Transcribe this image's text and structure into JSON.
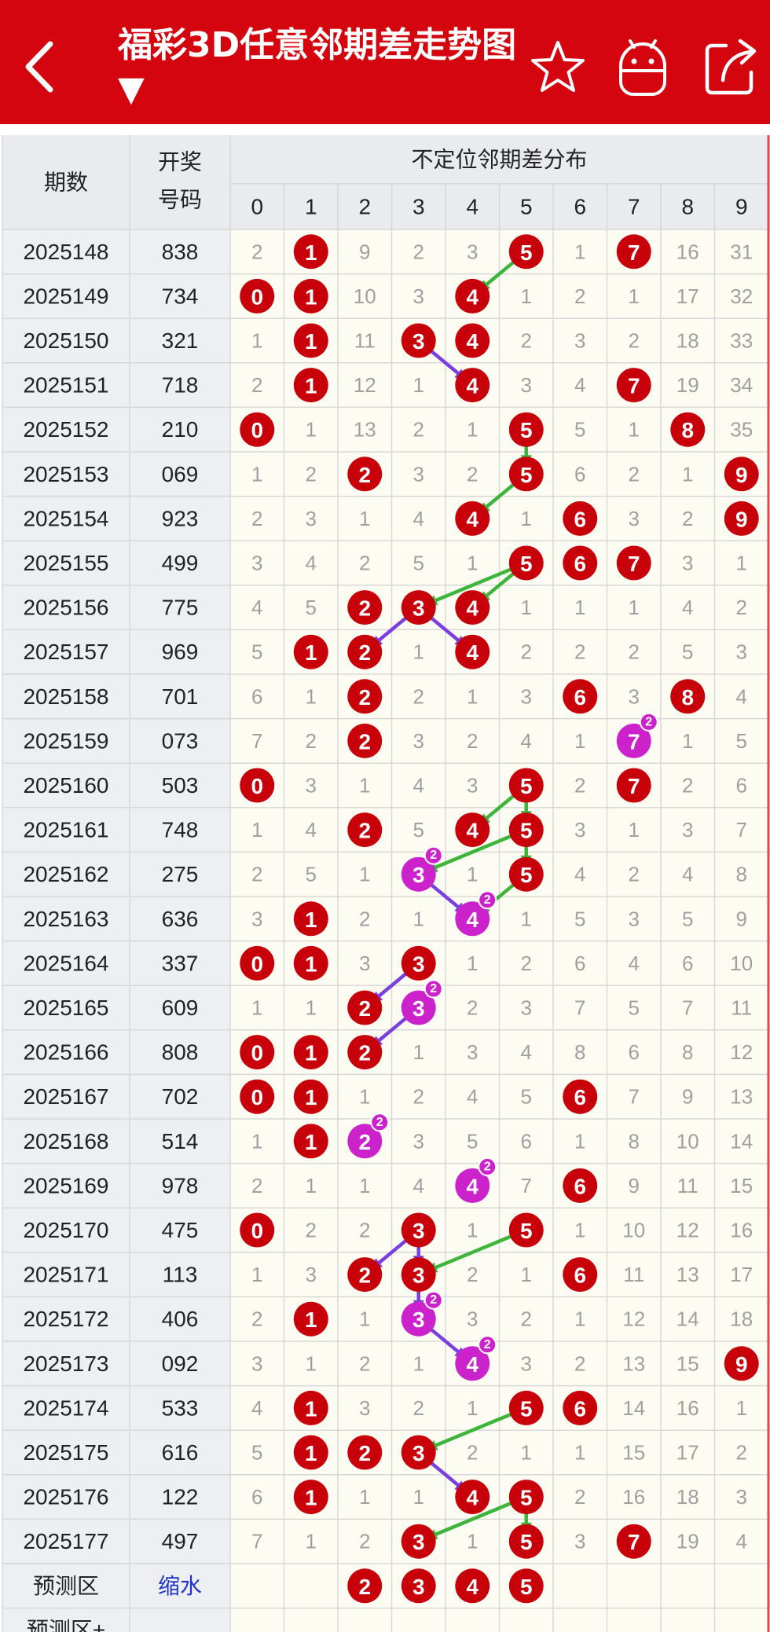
{
  "header": {
    "title": "福彩3D任意邻期差走势图 ▼",
    "icons": [
      "back-arrow-icon",
      "star-icon",
      "android-robot-icon",
      "share-icon"
    ],
    "bg_color": "#d4050e"
  },
  "table": {
    "col_issue": "期数",
    "col_draw": "开奖号码",
    "group_title": "不定位邻期差分布",
    "digits": [
      "0",
      "1",
      "2",
      "3",
      "4",
      "5",
      "6",
      "7",
      "8",
      "9"
    ],
    "rows": [
      {
        "issue": "2025148",
        "draw": "838",
        "cells": [
          "2",
          "1",
          "9",
          "2",
          "3",
          "5",
          "1",
          "7",
          "16",
          "31"
        ],
        "red": [
          1,
          5,
          7
        ],
        "purple": []
      },
      {
        "issue": "2025149",
        "draw": "734",
        "cells": [
          "0",
          "1",
          "10",
          "3",
          "4",
          "1",
          "2",
          "1",
          "17",
          "32"
        ],
        "red": [
          0,
          1,
          4
        ],
        "purple": []
      },
      {
        "issue": "2025150",
        "draw": "321",
        "cells": [
          "1",
          "1",
          "11",
          "3",
          "4",
          "2",
          "3",
          "2",
          "18",
          "33"
        ],
        "red": [
          1,
          3,
          4
        ],
        "purple": []
      },
      {
        "issue": "2025151",
        "draw": "718",
        "cells": [
          "2",
          "1",
          "12",
          "1",
          "4",
          "3",
          "4",
          "7",
          "19",
          "34"
        ],
        "red": [
          1,
          4,
          7
        ],
        "purple": []
      },
      {
        "issue": "2025152",
        "draw": "210",
        "cells": [
          "0",
          "1",
          "13",
          "2",
          "1",
          "5",
          "5",
          "1",
          "8",
          "35"
        ],
        "red": [
          0,
          5,
          8
        ],
        "purple": []
      },
      {
        "issue": "2025153",
        "draw": "069",
        "cells": [
          "1",
          "2",
          "2",
          "3",
          "2",
          "5",
          "6",
          "2",
          "1",
          "9"
        ],
        "red": [
          2,
          5,
          9
        ],
        "purple": []
      },
      {
        "issue": "2025154",
        "draw": "923",
        "cells": [
          "2",
          "3",
          "1",
          "4",
          "4",
          "1",
          "6",
          "3",
          "2",
          "9"
        ],
        "red": [
          4,
          6,
          9
        ],
        "purple": []
      },
      {
        "issue": "2025155",
        "draw": "499",
        "cells": [
          "3",
          "4",
          "2",
          "5",
          "1",
          "5",
          "6",
          "7",
          "3",
          "1"
        ],
        "red": [
          5,
          6,
          7
        ],
        "purple": []
      },
      {
        "issue": "2025156",
        "draw": "775",
        "cells": [
          "4",
          "5",
          "2",
          "3",
          "4",
          "1",
          "1",
          "1",
          "4",
          "2"
        ],
        "red": [
          2,
          3,
          4
        ],
        "purple": []
      },
      {
        "issue": "2025157",
        "draw": "969",
        "cells": [
          "5",
          "1",
          "2",
          "1",
          "4",
          "2",
          "2",
          "2",
          "5",
          "3"
        ],
        "red": [
          1,
          2,
          4
        ],
        "purple": []
      },
      {
        "issue": "2025158",
        "draw": "701",
        "cells": [
          "6",
          "1",
          "2",
          "2",
          "1",
          "3",
          "6",
          "3",
          "8",
          "4"
        ],
        "red": [
          2,
          6,
          8
        ],
        "purple": []
      },
      {
        "issue": "2025159",
        "draw": "073",
        "cells": [
          "7",
          "2",
          "2",
          "3",
          "2",
          "4",
          "1",
          "7",
          "1",
          "5"
        ],
        "red": [
          2
        ],
        "purple": [
          7
        ]
      },
      {
        "issue": "2025160",
        "draw": "503",
        "cells": [
          "0",
          "3",
          "1",
          "4",
          "3",
          "5",
          "2",
          "7",
          "2",
          "6"
        ],
        "red": [
          0,
          5,
          7
        ],
        "purple": []
      },
      {
        "issue": "2025161",
        "draw": "748",
        "cells": [
          "1",
          "4",
          "2",
          "5",
          "4",
          "5",
          "3",
          "1",
          "3",
          "7"
        ],
        "red": [
          2,
          4,
          5
        ],
        "purple": []
      },
      {
        "issue": "2025162",
        "draw": "275",
        "cells": [
          "2",
          "5",
          "1",
          "3",
          "1",
          "5",
          "4",
          "2",
          "4",
          "8"
        ],
        "red": [
          5
        ],
        "purple": [
          3
        ]
      },
      {
        "issue": "2025163",
        "draw": "636",
        "cells": [
          "3",
          "1",
          "2",
          "1",
          "4",
          "1",
          "5",
          "3",
          "5",
          "9"
        ],
        "red": [
          1
        ],
        "purple": [
          4
        ]
      },
      {
        "issue": "2025164",
        "draw": "337",
        "cells": [
          "0",
          "1",
          "3",
          "3",
          "1",
          "2",
          "6",
          "4",
          "6",
          "10"
        ],
        "red": [
          0,
          1,
          3
        ],
        "purple": []
      },
      {
        "issue": "2025165",
        "draw": "609",
        "cells": [
          "1",
          "1",
          "2",
          "3",
          "2",
          "3",
          "7",
          "5",
          "7",
          "11"
        ],
        "red": [
          2
        ],
        "purple": [
          3
        ]
      },
      {
        "issue": "2025166",
        "draw": "808",
        "cells": [
          "0",
          "1",
          "2",
          "1",
          "3",
          "4",
          "8",
          "6",
          "8",
          "12"
        ],
        "red": [
          0,
          1,
          2
        ],
        "purple": []
      },
      {
        "issue": "2025167",
        "draw": "702",
        "cells": [
          "0",
          "1",
          "1",
          "2",
          "4",
          "5",
          "6",
          "7",
          "9",
          "13"
        ],
        "red": [
          0,
          1,
          6
        ],
        "purple": []
      },
      {
        "issue": "2025168",
        "draw": "514",
        "cells": [
          "1",
          "1",
          "2",
          "3",
          "5",
          "6",
          "1",
          "8",
          "10",
          "14"
        ],
        "red": [
          1
        ],
        "purple": [
          2
        ]
      },
      {
        "issue": "2025169",
        "draw": "978",
        "cells": [
          "2",
          "1",
          "1",
          "4",
          "4",
          "7",
          "6",
          "9",
          "11",
          "15"
        ],
        "red": [
          6
        ],
        "purple": [
          4
        ]
      },
      {
        "issue": "2025170",
        "draw": "475",
        "cells": [
          "0",
          "2",
          "2",
          "3",
          "1",
          "5",
          "1",
          "10",
          "12",
          "16"
        ],
        "red": [
          0,
          3,
          5
        ],
        "purple": []
      },
      {
        "issue": "2025171",
        "draw": "113",
        "cells": [
          "1",
          "3",
          "2",
          "3",
          "2",
          "1",
          "6",
          "11",
          "13",
          "17"
        ],
        "red": [
          2,
          3,
          6
        ],
        "purple": []
      },
      {
        "issue": "2025172",
        "draw": "406",
        "cells": [
          "2",
          "1",
          "1",
          "3",
          "3",
          "2",
          "1",
          "12",
          "14",
          "18"
        ],
        "red": [
          1
        ],
        "purple": [
          3
        ]
      },
      {
        "issue": "2025173",
        "draw": "092",
        "cells": [
          "3",
          "1",
          "2",
          "1",
          "4",
          "3",
          "2",
          "13",
          "15",
          "9"
        ],
        "red": [
          9
        ],
        "purple": [
          4
        ]
      },
      {
        "issue": "2025174",
        "draw": "533",
        "cells": [
          "4",
          "1",
          "3",
          "2",
          "1",
          "5",
          "6",
          "14",
          "16",
          "1"
        ],
        "red": [
          1,
          5,
          6
        ],
        "purple": []
      },
      {
        "issue": "2025175",
        "draw": "616",
        "cells": [
          "5",
          "1",
          "2",
          "3",
          "2",
          "1",
          "1",
          "15",
          "17",
          "2"
        ],
        "red": [
          1,
          2,
          3
        ],
        "purple": []
      },
      {
        "issue": "2025176",
        "draw": "122",
        "cells": [
          "6",
          "1",
          "1",
          "1",
          "4",
          "5",
          "2",
          "16",
          "18",
          "3"
        ],
        "red": [
          1,
          4,
          5
        ],
        "purple": []
      },
      {
        "issue": "2025177",
        "draw": "497",
        "cells": [
          "7",
          "1",
          "2",
          "3",
          "1",
          "5",
          "3",
          "7",
          "19",
          "4"
        ],
        "red": [
          3,
          5,
          7
        ],
        "purple": []
      }
    ],
    "repeat_badge": "2",
    "predict": {
      "label": "预测区",
      "link": "缩水",
      "balls": [
        "2",
        "3",
        "4",
        "5"
      ],
      "ball_cols": [
        2,
        3,
        4,
        5
      ]
    },
    "predict_plus": {
      "label": "预测区+"
    },
    "colors": {
      "red_ball": "#c8000a",
      "purple_ball": "#cc22cc",
      "green_line": "#3cb53a",
      "purple_line": "#7b3fe0",
      "row_label_bg": "#eeeff3",
      "cell_bg": "#fdfcf3",
      "grid_line": "#d8d8d8",
      "header_bg": "#e9ebef",
      "dim_text": "#a0a0a0",
      "link_text": "#2233cc"
    }
  }
}
